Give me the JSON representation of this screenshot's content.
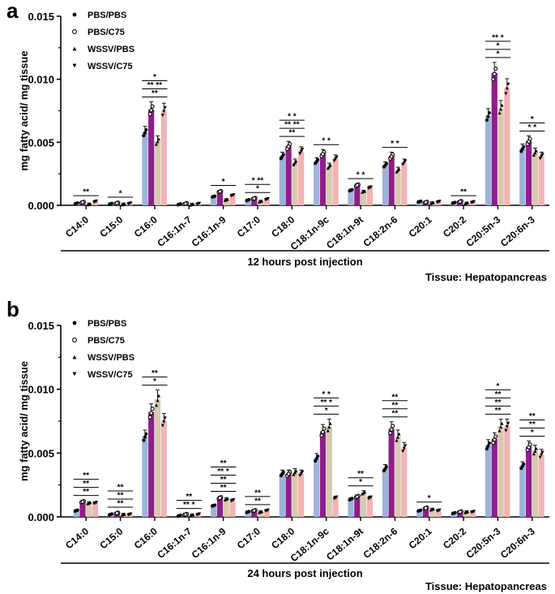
{
  "figure": {
    "colors": {
      "PBS/PBS": "#9DB3DA",
      "PBS/C75": "#8E1E8A",
      "WSSV/PBS": "#D8C9AE",
      "WSSV/C75": "#F2B3B3"
    }
  },
  "chart_data": [
    {
      "panel_label": "a",
      "type": "bar",
      "title": "",
      "xlabel": "12 hours post injection",
      "ylabel": "mg fatty acid/ mg tissue",
      "tissue_label": "Tissue:  Hepatopancreas",
      "ylim": [
        0,
        0.015
      ],
      "yticks": [
        "0.000",
        "0.005",
        "0.010",
        "0.015"
      ],
      "categories": [
        "C14:0",
        "C15:0",
        "C16:0",
        "C16:1n-7",
        "C16:1n-9",
        "C17:0",
        "C18:0",
        "C18:1n-9c",
        "C18:1n-9t",
        "C18:2n-6",
        "C20:1",
        "C20:2",
        "C20:5n-3",
        "C20:6n-3"
      ],
      "series": [
        {
          "name": "PBS/PBS",
          "values": [
            0.00015,
            0.00012,
            0.0058,
            9e-05,
            0.0007,
            0.00042,
            0.0039,
            0.0035,
            0.0012,
            0.0032,
            0.0003,
            0.0002,
            0.0071,
            0.0045
          ]
        },
        {
          "name": "PBS/C75",
          "values": [
            0.00025,
            0.00018,
            0.0076,
            0.00014,
            0.0011,
            0.00055,
            0.0047,
            0.0041,
            0.0016,
            0.0039,
            0.00025,
            0.0003,
            0.0105,
            0.0051
          ]
        },
        {
          "name": "WSSV/PBS",
          "values": [
            0.0001,
            0.0001,
            0.0051,
            8e-05,
            0.00045,
            0.00032,
            0.0034,
            0.0031,
            0.0011,
            0.0028,
            0.0002,
            0.00018,
            0.0077,
            0.0042
          ]
        },
        {
          "name": "WSSV/C75",
          "values": [
            0.0003,
            0.00015,
            0.0075,
            0.00012,
            0.0008,
            0.00048,
            0.0043,
            0.0037,
            0.0014,
            0.0034,
            0.00028,
            0.00025,
            0.0093,
            0.0039
          ]
        }
      ],
      "significance": [
        {
          "category": "C14:0",
          "labels": [
            "**"
          ]
        },
        {
          "category": "C15:0",
          "labels": [
            "*"
          ]
        },
        {
          "category": "C16:0",
          "labels": [
            "**",
            "** **",
            "*"
          ]
        },
        {
          "category": "C16:1n-9",
          "labels": [
            "*"
          ]
        },
        {
          "category": "C17:0",
          "labels": [
            "*",
            "* **"
          ]
        },
        {
          "category": "C18:0",
          "labels": [
            "**",
            "** **",
            "* *"
          ]
        },
        {
          "category": "C18:1n-9c",
          "labels": [
            "* *"
          ]
        },
        {
          "category": "C18:1n-9t",
          "labels": [
            "* *"
          ]
        },
        {
          "category": "C18:2n-6",
          "labels": [
            "* *"
          ]
        },
        {
          "category": "C20:2",
          "labels": [
            "**"
          ]
        },
        {
          "category": "C20:5n-3",
          "labels": [
            "*",
            "*",
            "** *"
          ]
        },
        {
          "category": "C20:6n-3",
          "labels": [
            "* *",
            "*"
          ]
        }
      ]
    },
    {
      "panel_label": "b",
      "type": "bar",
      "title": "",
      "xlabel": "24 hours post injection",
      "ylabel": "mg fatty acid/ mg tissue",
      "tissue_label": "Tissue:  Hepatopancreas",
      "ylim": [
        0,
        0.015
      ],
      "yticks": [
        "0.000",
        "0.005",
        "0.010",
        "0.015"
      ],
      "categories": [
        "C14:0",
        "C15:0",
        "C16:0",
        "C16:1n-7",
        "C16:1n-9",
        "C17:0",
        "C18:0",
        "C18:1n-9c",
        "C18:1n-9t",
        "C18:2n-6",
        "C20:1",
        "C20:2",
        "C20:5n-3",
        "C20:6n-3"
      ],
      "series": [
        {
          "name": "PBS/PBS",
          "values": [
            0.0005,
            0.0002,
            0.0063,
            0.0001,
            0.0009,
            0.0004,
            0.0034,
            0.0046,
            0.0014,
            0.0038,
            0.0005,
            0.0003,
            0.0056,
            0.004
          ]
        },
        {
          "name": "PBS/C75",
          "values": [
            0.0012,
            0.0003,
            0.0082,
            0.0002,
            0.0015,
            0.0005,
            0.0034,
            0.0067,
            0.0016,
            0.0069,
            0.0007,
            0.0004,
            0.0061,
            0.0055
          ]
        },
        {
          "name": "WSSV/PBS",
          "values": [
            0.0011,
            0.0002,
            0.0092,
            0.00015,
            0.0014,
            0.0004,
            0.0035,
            0.0071,
            0.0019,
            0.0063,
            0.0006,
            0.0004,
            0.0071,
            0.0052
          ]
        },
        {
          "name": "WSSV/C75",
          "values": [
            0.0011,
            0.0002,
            0.0075,
            0.0002,
            0.0013,
            0.0005,
            0.0034,
            0.0015,
            0.0015,
            0.0054,
            0.0005,
            0.0004,
            0.0071,
            0.0049
          ]
        }
      ],
      "significance": [
        {
          "category": "C14:0",
          "labels": [
            "**",
            "**",
            "**"
          ]
        },
        {
          "category": "C15:0",
          "labels": [
            "**",
            "**",
            "**"
          ]
        },
        {
          "category": "C16:0",
          "labels": [
            "*",
            "**"
          ]
        },
        {
          "category": "C16:1n-7",
          "labels": [
            "** *",
            "**"
          ]
        },
        {
          "category": "C16:1n-9",
          "labels": [
            "**",
            "**",
            "** *",
            "**"
          ]
        },
        {
          "category": "C17:0",
          "labels": [
            "**",
            "**"
          ]
        },
        {
          "category": "C18:1n-9c",
          "labels": [
            "*",
            "** *",
            "* *"
          ]
        },
        {
          "category": "C18:1n-9t",
          "labels": [
            "*",
            "**"
          ]
        },
        {
          "category": "C18:2n-6",
          "labels": [
            "**",
            "**",
            "**"
          ]
        },
        {
          "category": "C20:1",
          "labels": [
            "*"
          ]
        },
        {
          "category": "C20:5n-3",
          "labels": [
            "**",
            "**",
            "**",
            "*"
          ]
        },
        {
          "category": "C20:6n-3",
          "labels": [
            "*",
            "**",
            "**"
          ]
        }
      ]
    }
  ]
}
